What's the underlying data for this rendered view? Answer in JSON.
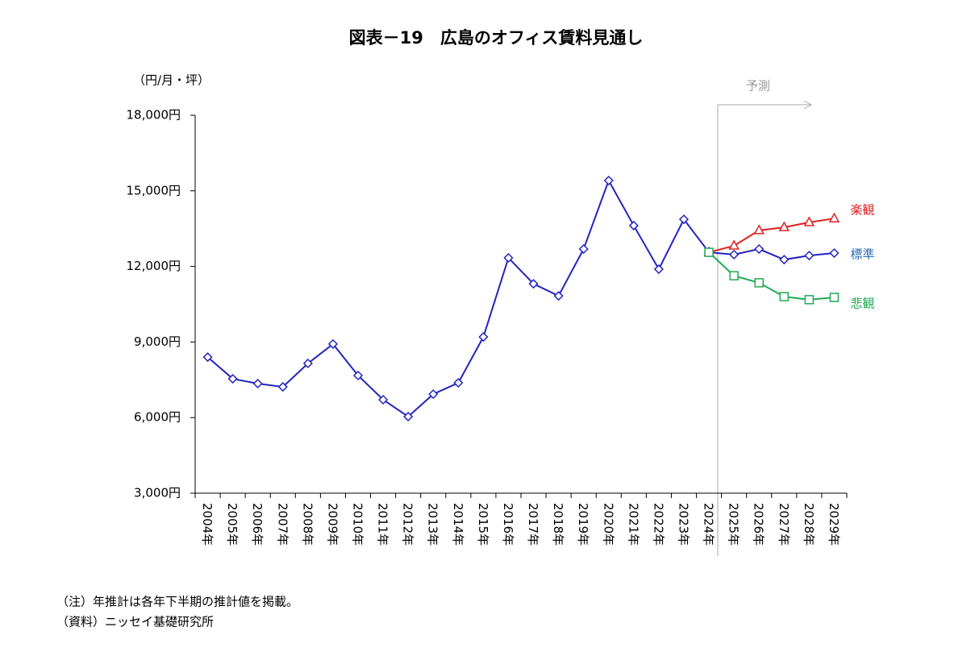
{
  "chart_data": {
    "type": "line",
    "title": "図表－19　広島のオフィス賃料見通し",
    "unit_label": "（円/月・坪）",
    "forecast_label": "予測",
    "notes": [
      "（注）年推計は各年下半期の推計値を掲載。",
      "（資料）ニッセイ基礎研究所"
    ],
    "categories": [
      "2004年",
      "2005年",
      "2006年",
      "2007年",
      "2008年",
      "2009年",
      "2010年",
      "2011年",
      "2012年",
      "2013年",
      "2014年",
      "2015年",
      "2016年",
      "2017年",
      "2018年",
      "2019年",
      "2020年",
      "2021年",
      "2022年",
      "2023年",
      "2024年",
      "2025年",
      "2026年",
      "2027年",
      "2028年",
      "2029年"
    ],
    "series": [
      {
        "name": "楽観",
        "color": "#e02020",
        "marker": "triangle",
        "values": [
          null,
          null,
          null,
          null,
          null,
          null,
          null,
          null,
          null,
          null,
          null,
          null,
          null,
          null,
          null,
          null,
          null,
          null,
          null,
          null,
          12560,
          12820,
          13430,
          13550,
          13750,
          13900
        ]
      },
      {
        "name": "標準",
        "color": "#2323c0",
        "label_color": "#2a6db0",
        "marker": "diamond",
        "values": [
          8400,
          7540,
          7350,
          7220,
          8150,
          8920,
          7670,
          6710,
          6040,
          6930,
          7380,
          9200,
          12340,
          11310,
          10830,
          12690,
          15410,
          13620,
          11890,
          13870,
          12560,
          12470,
          12690,
          12270,
          12430,
          12530
        ]
      },
      {
        "name": "悲観",
        "color": "#1faa55",
        "marker": "square",
        "values": [
          null,
          null,
          null,
          null,
          null,
          null,
          null,
          null,
          null,
          null,
          null,
          null,
          null,
          null,
          null,
          null,
          null,
          null,
          null,
          null,
          12560,
          11630,
          11350,
          10800,
          10680,
          10770
        ]
      }
    ],
    "ylim": [
      3000,
      18000
    ],
    "yticks": [
      {
        "value": 3000,
        "label": "3,000円"
      },
      {
        "value": 6000,
        "label": "6,000円"
      },
      {
        "value": 9000,
        "label": "9,000円"
      },
      {
        "value": 12000,
        "label": "12,000円"
      },
      {
        "value": 15000,
        "label": "15,000円"
      },
      {
        "value": 18000,
        "label": "18,000円"
      }
    ],
    "grid": false
  }
}
